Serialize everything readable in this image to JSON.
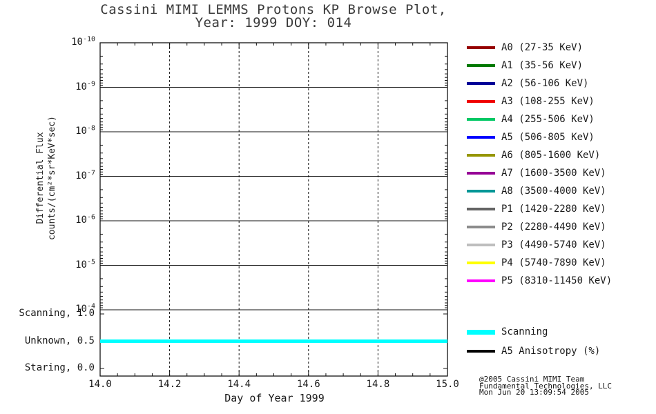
{
  "title": {
    "line1": "Cassini MIMI LEMMS Protons KP Browse Plot,",
    "line2": "Year: 1999 DOY: 014"
  },
  "axes": {
    "ylabel_line1": "Differential Flux",
    "ylabel_line2": "counts/(cm²*sr*KeV*sec)",
    "xlabel": "Day of Year 1999"
  },
  "chart_data": {
    "type": "line",
    "title": "Cassini MIMI LEMMS Protons KP Browse Plot, Year: 1999 DOY: 014",
    "xlabel": "Day of Year 1999",
    "ylabel": "Differential Flux counts/(cm^2*sr*KeV*sec)",
    "x_range": [
      14.0,
      15.0
    ],
    "x_tick_labels": [
      "14.0",
      "14.2",
      "14.4",
      "14.6",
      "14.8",
      "15.0"
    ],
    "x_minor_tick_step": 0.05,
    "grid": {
      "horizontal": "solid",
      "vertical": "dashed"
    },
    "legend_position": "right",
    "main_panel": {
      "yscale": "log",
      "y_tick_labels_top_to_bottom": [
        "10^-10",
        "10^-9",
        "10^-8",
        "10^-7",
        "10^-6",
        "10^-5",
        "10^-4"
      ],
      "series": []
    },
    "status_panel": {
      "y_ticks": [
        {
          "label": "Scanning, 1.0",
          "value": 1.0
        },
        {
          "label": "Unknown, 0.5",
          "value": 0.5
        },
        {
          "label": "Staring, 0.0",
          "value": 0.0
        }
      ],
      "series": [
        {
          "name": "Scanning",
          "color": "#00FFFF",
          "width": 5,
          "x": [
            14.0,
            15.0
          ],
          "y": [
            0.5,
            0.5
          ]
        }
      ]
    }
  },
  "legend": {
    "channels": [
      {
        "label": "A0 (27-35 KeV)",
        "color": "#960000"
      },
      {
        "label": "A1 (35-56 KeV)",
        "color": "#007800"
      },
      {
        "label": "A2 (56-106 KeV)",
        "color": "#000096"
      },
      {
        "label": "A3 (108-255 KeV)",
        "color": "#F00000"
      },
      {
        "label": "A4 (255-506 KeV)",
        "color": "#00C864"
      },
      {
        "label": "A5 (506-805 KeV)",
        "color": "#0000FF"
      },
      {
        "label": "A6 (805-1600 KeV)",
        "color": "#969600"
      },
      {
        "label": "A7 (1600-3500 KeV)",
        "color": "#960096"
      },
      {
        "label": "A8 (3500-4000 KeV)",
        "color": "#009696"
      },
      {
        "label": "P1 (1420-2280 KeV)",
        "color": "#646464"
      },
      {
        "label": "P2 (2280-4490 KeV)",
        "color": "#8C8C8C"
      },
      {
        "label": "P3 (4490-5740 KeV)",
        "color": "#BEBEBE"
      },
      {
        "label": "P4 (5740-7890 KeV)",
        "color": "#FFFF00"
      },
      {
        "label": "P5 (8310-11450 KeV)",
        "color": "#FF00FF"
      }
    ],
    "status": [
      {
        "label": "Scanning",
        "color": "#00FFFF",
        "thick": true
      },
      {
        "label": "A5 Anisotropy (%)",
        "color": "#000000",
        "thick": false
      }
    ]
  },
  "footer": {
    "line1": "@2005 Cassini MIMI Team",
    "line2": "Fundamental Technologies, LLC",
    "line3": "Mon Jun 20 13:09:54 2005"
  },
  "colors": {
    "background": "#FFFFFF",
    "axis": "#111111",
    "scanning": "#00FFFF"
  }
}
